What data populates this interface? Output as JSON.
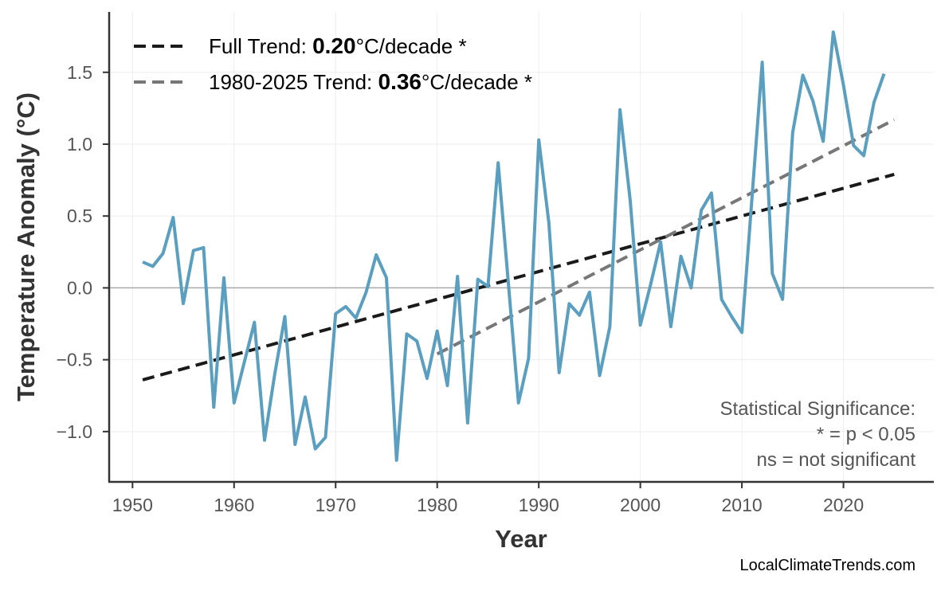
{
  "chart_data": {
    "type": "line",
    "xlabel": "Year",
    "ylabel": "Temperature Anomaly (°C)",
    "xlim": [
      1947.7,
      2028.9
    ],
    "ylim": [
      -1.35,
      1.92
    ],
    "xticks": [
      1950,
      1960,
      1970,
      1980,
      1990,
      2000,
      2010,
      2020
    ],
    "yticks": [
      -1.0,
      -0.5,
      0.0,
      0.5,
      1.0,
      1.5
    ],
    "ytick_labels": [
      "−1.0",
      "−0.5",
      "0.0",
      "0.5",
      "1.0",
      "1.5"
    ],
    "grid": true,
    "zero_line": true,
    "series": [
      {
        "color": "#5a9fc0",
        "x": [
          1951,
          1952,
          1953,
          1954,
          1955,
          1956,
          1957,
          1958,
          1959,
          1960,
          1961,
          1962,
          1963,
          1964,
          1965,
          1966,
          1967,
          1968,
          1969,
          1970,
          1971,
          1972,
          1973,
          1974,
          1975,
          1976,
          1977,
          1978,
          1979,
          1980,
          1981,
          1982,
          1983,
          1984,
          1985,
          1986,
          1987,
          1988,
          1989,
          1990,
          1991,
          1992,
          1993,
          1994,
          1995,
          1996,
          1997,
          1998,
          1999,
          2000,
          2001,
          2002,
          2003,
          2004,
          2005,
          2006,
          2007,
          2008,
          2009,
          2010,
          2011,
          2012,
          2013,
          2014,
          2015,
          2016,
          2017,
          2018,
          2019,
          2020,
          2021,
          2022,
          2023,
          2024
        ],
        "y": [
          0.18,
          0.15,
          0.24,
          0.49,
          -0.11,
          0.26,
          0.28,
          -0.83,
          0.07,
          -0.8,
          -0.52,
          -0.24,
          -1.06,
          -0.6,
          -0.2,
          -1.09,
          -0.76,
          -1.12,
          -1.04,
          -0.18,
          -0.13,
          -0.21,
          -0.03,
          0.23,
          0.07,
          -1.2,
          -0.32,
          -0.37,
          -0.63,
          -0.3,
          -0.68,
          0.08,
          -0.94,
          0.06,
          0.01,
          0.87,
          0.04,
          -0.8,
          -0.49,
          1.03,
          0.45,
          -0.59,
          -0.11,
          -0.19,
          -0.03,
          -0.61,
          -0.27,
          1.24,
          0.61,
          -0.26,
          0.02,
          0.32,
          -0.27,
          0.22,
          0.0,
          0.54,
          0.66,
          -0.08,
          -0.2,
          -0.31,
          0.63,
          1.57,
          0.1,
          -0.08,
          1.08,
          1.48,
          1.3,
          1.02,
          1.78,
          1.41,
          0.99,
          0.92,
          1.29,
          1.49
        ]
      }
    ],
    "trends": [
      {
        "label_prefix": "Full Trend: ",
        "value": "0.20",
        "label_suffix": "°C/decade *",
        "color": "#1a1a1a",
        "x": [
          1951,
          2025
        ],
        "y": [
          -0.64,
          0.79
        ]
      },
      {
        "label_prefix": "1980-2025 Trend: ",
        "value": "0.36",
        "label_suffix": "°C/decade *",
        "color": "#777777",
        "x": [
          1980,
          2025
        ],
        "y": [
          -0.46,
          1.17
        ]
      }
    ],
    "legend_position": "top-left",
    "annotation": [
      "Statistical Significance:",
      "* = p < 0.05",
      "ns = not significant"
    ],
    "watermark": "LocalClimateTrends.com"
  }
}
